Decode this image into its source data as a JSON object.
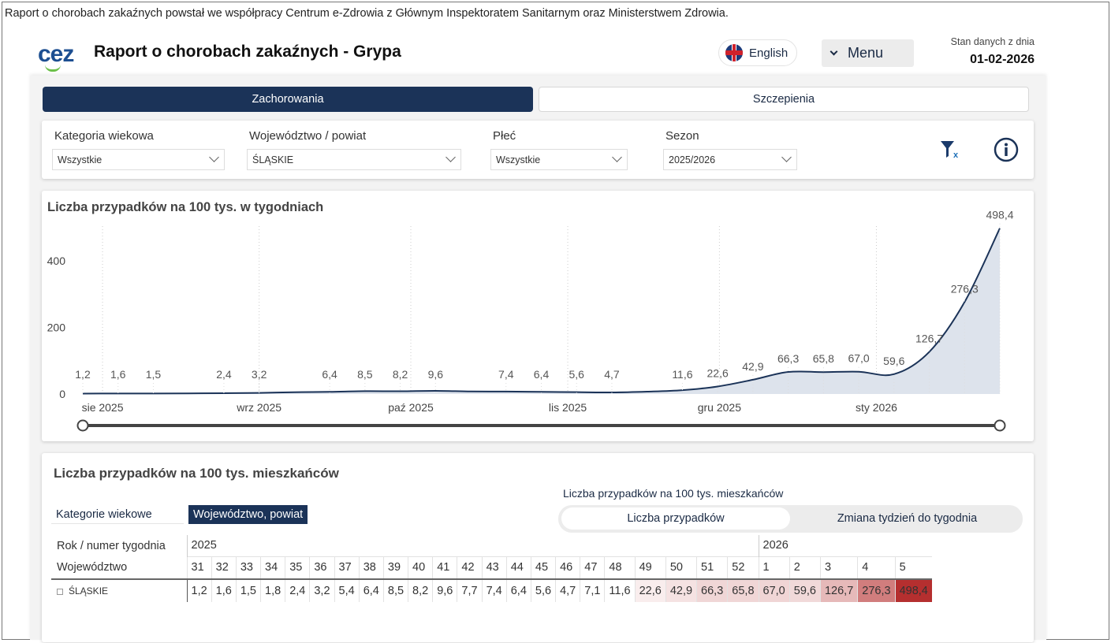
{
  "credit": "Raport o chorobach zakaźnych powstał we współpracy Centrum e-Zdrowia z Głównym Inspektoratem Sanitarnym oraz Ministerstwem Zdrowia.",
  "header": {
    "logo": "cez",
    "title": "Raport o chorobach zakaźnych - Grypa",
    "language_label": "English",
    "language_icon": "uk-flag-icon",
    "menu_label": "Menu",
    "data_date_label": "Stan danych z dnia",
    "data_date": "01-02-2026"
  },
  "tabs": [
    {
      "label": "Zachorowania",
      "active": true
    },
    {
      "label": "Szczepienia",
      "active": false
    }
  ],
  "filters": [
    {
      "label": "Kategoria wiekowa",
      "value": "Wszystkie"
    },
    {
      "label": "Województwo / powiat",
      "value": "ŚLĄSKIE"
    },
    {
      "label": "Płeć",
      "value": "Wszystkie"
    },
    {
      "label": "Sezon",
      "value": "2025/2026"
    }
  ],
  "filter_icons": [
    "clear-filter-icon",
    "info-icon"
  ],
  "colors": {
    "navy": "#1b3358",
    "area": "#dde3ec",
    "heat_max": "#b52f2f",
    "accent_green": "#6cc04a"
  },
  "chart_data": {
    "type": "area",
    "title": "Liczba przypadków na 100 tys. w tygodniach",
    "x": [
      "31",
      "32",
      "33",
      "34",
      "35",
      "36",
      "37",
      "38",
      "39",
      "40",
      "41",
      "42",
      "43",
      "44",
      "45",
      "46",
      "47",
      "48",
      "49",
      "50",
      "51",
      "52",
      "1",
      "2",
      "3",
      "4",
      "5"
    ],
    "values": [
      1.2,
      1.6,
      1.5,
      1.8,
      2.4,
      3.2,
      5.4,
      6.4,
      8.5,
      8.2,
      9.6,
      7.7,
      7.4,
      6.4,
      5.6,
      4.7,
      7.1,
      11.6,
      22.6,
      42.9,
      66.3,
      65.8,
      67.0,
      59.6,
      126.7,
      276.3,
      498.4
    ],
    "data_labels": [
      "1,2",
      "1,6",
      "1,5",
      "",
      "2,4",
      "3,2",
      "",
      "6,4",
      "8,5",
      "8,2",
      "9,6",
      "",
      "7,4",
      "6,4",
      "5,6",
      "4,7",
      "",
      "11,6",
      "22,6",
      "42,9",
      "66,3",
      "65,8",
      "67,0",
      "59,6",
      "126,7",
      "276,3",
      "498,4"
    ],
    "month_ticks": [
      "sie 2025",
      "wrz 2025",
      "paź 2025",
      "lis 2025",
      "gru 2025",
      "sty 2026"
    ],
    "y_ticks": [
      "0",
      "200",
      "400"
    ],
    "ylim": [
      0,
      500
    ],
    "grid": "vertical dotted at month ticks",
    "range_slider": [
      0,
      1
    ]
  },
  "table_section": {
    "title": "Liczba przypadków na 100 tys. mieszkańców",
    "view_buttons": [
      "Kategorie wiekowe",
      "Województwo, powiat"
    ],
    "measure_label": "Liczba przypadków na 100 tys. mieszkańców",
    "measure_toggle": [
      "Liczba przypadków",
      "Zmiana tydzień do tygodnia"
    ],
    "row_header_1": "Rok / numer tygodnia",
    "row_header_2": "Województwo",
    "years": [
      {
        "year": "2025",
        "span": 22
      },
      {
        "year": "2026",
        "span": 5
      }
    ],
    "weeks": [
      "31",
      "32",
      "33",
      "34",
      "35",
      "36",
      "37",
      "38",
      "39",
      "40",
      "41",
      "42",
      "43",
      "44",
      "45",
      "46",
      "47",
      "48",
      "49",
      "50",
      "51",
      "52",
      "1",
      "2",
      "3",
      "4",
      "5"
    ],
    "rows": [
      {
        "name": "ŚLĄSKIE",
        "values": [
          "1,2",
          "1,6",
          "1,5",
          "1,8",
          "2,4",
          "3,2",
          "5,4",
          "6,4",
          "8,5",
          "8,2",
          "9,6",
          "7,7",
          "7,4",
          "6,4",
          "5,6",
          "4,7",
          "7,1",
          "11,6",
          "22,6",
          "42,9",
          "66,3",
          "65,8",
          "67,0",
          "59,6",
          "126,7",
          "276,3",
          "498,4"
        ]
      }
    ]
  }
}
